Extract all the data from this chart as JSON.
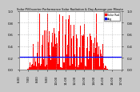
{
  "title": "Solar PV/Inverter Performance Solar Radiation & Day Average per Minute",
  "bg_color": "#c8c8c8",
  "plot_bg_color": "#ffffff",
  "grid_color": "#aaaaaa",
  "bar_color": "#ff0000",
  "avg_line_color": "#0000ff",
  "avg_line_value": 0.22,
  "ylim": [
    0,
    1.0
  ],
  "num_points": 480,
  "legend_color1": "#ff0000",
  "legend_color2": "#0000ee",
  "legend_label1": "Solar Rad",
  "legend_label2": "Avg"
}
